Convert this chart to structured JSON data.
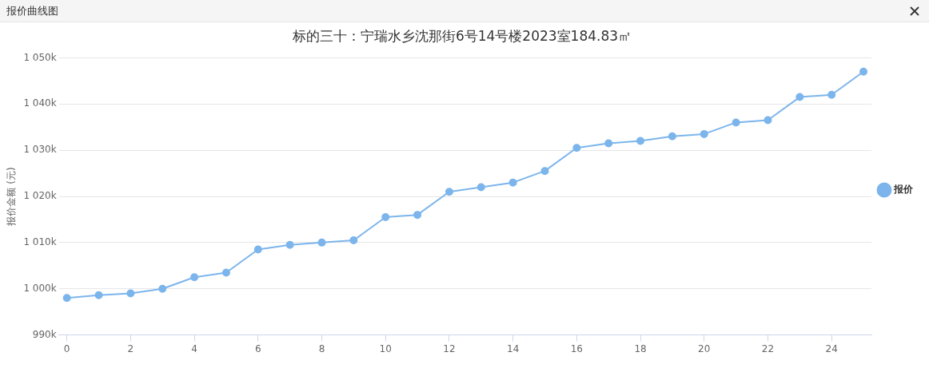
{
  "chart_data": {
    "type": "line",
    "title": "标的三十：宁瑞水乡沈那街6号14号楼2023室184.83㎡",
    "ylabel": "报价金额 (元)",
    "annotations": [
      "报价曲线图"
    ],
    "x": [
      0,
      1,
      2,
      3,
      4,
      5,
      6,
      7,
      8,
      9,
      10,
      11,
      12,
      13,
      14,
      15,
      16,
      17,
      18,
      19,
      20,
      21,
      22,
      23,
      24,
      25
    ],
    "series": [
      {
        "name": "报价",
        "color": "#7cb5ec",
        "values": [
          998000,
          998600,
          999000,
          1000000,
          1002500,
          1003500,
          1008500,
          1009500,
          1010000,
          1010500,
          1015500,
          1016000,
          1021000,
          1022000,
          1023000,
          1025500,
          1030500,
          1031500,
          1032000,
          1033000,
          1033500,
          1036000,
          1036500,
          1041500,
          1042000,
          1047000
        ]
      }
    ],
    "xlim": [
      -0.25,
      25.25
    ],
    "xticks": [
      0,
      2,
      4,
      6,
      8,
      10,
      12,
      14,
      16,
      18,
      20,
      22,
      24
    ],
    "ylim": [
      990000,
      1050000
    ],
    "yticks": [
      {
        "value": 990000,
        "label": "990k"
      },
      {
        "value": 1000000,
        "label": "1 000k"
      },
      {
        "value": 1010000,
        "label": "1 010k"
      },
      {
        "value": 1020000,
        "label": "1 020k"
      },
      {
        "value": 1030000,
        "label": "1 030k"
      },
      {
        "value": 1040000,
        "label": "1 040k"
      },
      {
        "value": 1050000,
        "label": "1 050k"
      }
    ],
    "grid": "y",
    "legend": "right",
    "marker": "circle",
    "line_style": "solid"
  }
}
